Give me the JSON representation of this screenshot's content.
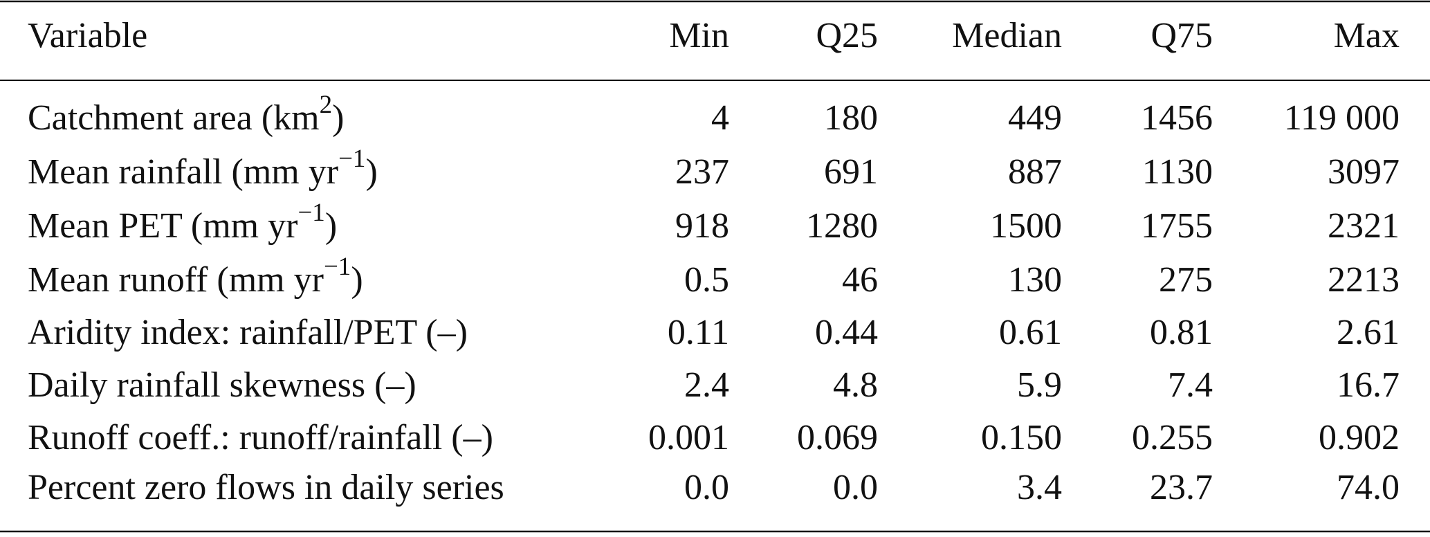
{
  "table": {
    "header": [
      "Variable",
      "Min",
      "Q25",
      "Median",
      "Q75",
      "Max"
    ],
    "rows": [
      {
        "label": {
          "text": "Catchment area (km",
          "sup": "2",
          "tail": ")"
        },
        "values": [
          "4",
          "180",
          "449",
          "1456",
          "119 000"
        ]
      },
      {
        "label": {
          "text": "Mean rainfall (mm yr",
          "sup": "−1",
          "tail": ")"
        },
        "values": [
          "237",
          "691",
          "887",
          "1130",
          "3097"
        ]
      },
      {
        "label": {
          "text": "Mean PET (mm yr",
          "sup": "−1",
          "tail": ")"
        },
        "values": [
          "918",
          "1280",
          "1500",
          "1755",
          "2321"
        ]
      },
      {
        "label": {
          "text": "Mean runoff (mm yr",
          "sup": "−1",
          "tail": ")"
        },
        "values": [
          "0.5",
          "46",
          "130",
          "275",
          "2213"
        ]
      },
      {
        "label": {
          "text": "Aridity index: rainfall/PET (–)"
        },
        "values": [
          "0.11",
          "0.44",
          "0.61",
          "0.81",
          "2.61"
        ]
      },
      {
        "label": {
          "text": "Daily rainfall skewness (–)"
        },
        "values": [
          "2.4",
          "4.8",
          "5.9",
          "7.4",
          "16.7"
        ]
      },
      {
        "label": {
          "text": "Runoff coeff.: runoff/rainfall (–)"
        },
        "values": [
          "0.001",
          "0.069",
          "0.150",
          "0.255",
          "0.902"
        ]
      },
      {
        "label": {
          "text": "Percent zero flows in daily series"
        },
        "values": [
          "0.0",
          "0.0",
          "3.4",
          "23.7",
          "74.0"
        ]
      }
    ]
  }
}
